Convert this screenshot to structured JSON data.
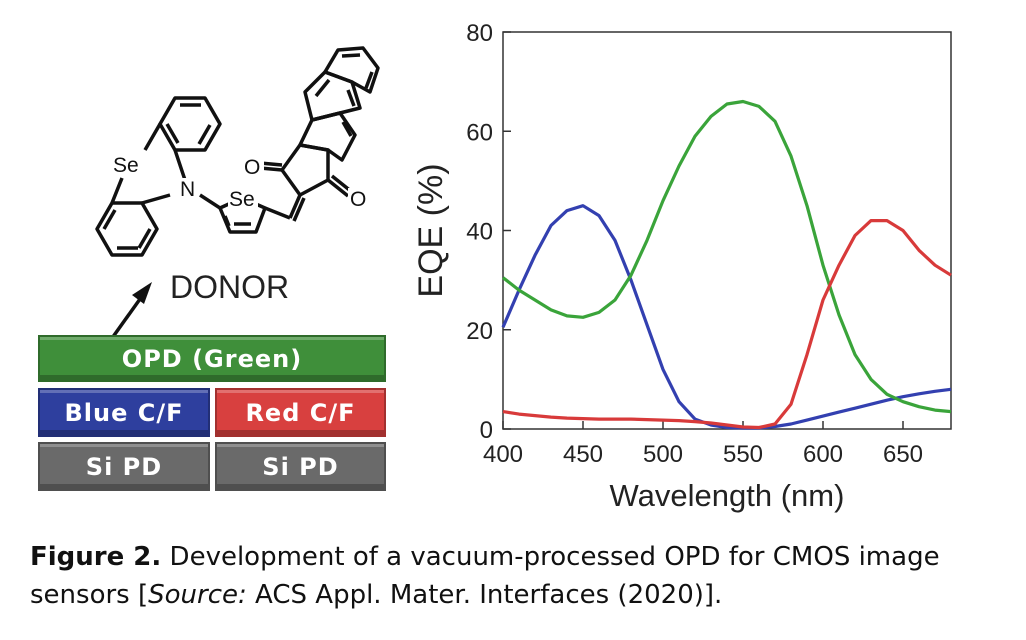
{
  "molecule": {
    "atom_labels": [
      "Se",
      "N",
      "Se",
      "O",
      "O"
    ],
    "name": "DONOR"
  },
  "device_stack": {
    "opd_label": "OPD (Green)",
    "blue_cf_label": "Blue C/F",
    "red_cf_label": "Red C/F",
    "si_pd_left_label": "Si PD",
    "si_pd_right_label": "Si PD",
    "colors": {
      "opd": "#3f8f3a",
      "blue": "#2e3f9e",
      "red": "#d8403f",
      "si": "#6a6a6a"
    }
  },
  "chart_data": {
    "type": "line",
    "xlabel": "Wavelength (nm)",
    "ylabel": "EQE (%)",
    "xlim": [
      400,
      680
    ],
    "ylim": [
      0,
      80
    ],
    "xticks": [
      400,
      450,
      500,
      550,
      600,
      650
    ],
    "yticks": [
      0,
      20,
      40,
      60,
      80
    ],
    "grid": false,
    "series": [
      {
        "color": "#3340b0",
        "x": [
          400,
          410,
          420,
          430,
          440,
          450,
          460,
          470,
          480,
          490,
          500,
          510,
          520,
          530,
          540,
          550,
          560,
          570,
          580,
          590,
          600,
          610,
          620,
          630,
          640,
          650,
          660,
          670,
          680
        ],
        "y": [
          20.5,
          28,
          35,
          41,
          44,
          45,
          43,
          38,
          30,
          21,
          12,
          5.5,
          2,
          0.8,
          0.3,
          0.2,
          0.2,
          0.5,
          1,
          1.8,
          2.6,
          3.4,
          4.2,
          5,
          5.8,
          6.5,
          7.1,
          7.6,
          8
        ]
      },
      {
        "color": "#3aa43a",
        "x": [
          400,
          410,
          420,
          430,
          440,
          450,
          460,
          470,
          480,
          490,
          500,
          510,
          520,
          530,
          540,
          550,
          560,
          570,
          580,
          590,
          600,
          610,
          620,
          630,
          640,
          650,
          660,
          670,
          680
        ],
        "y": [
          30.5,
          28,
          26,
          24,
          22.8,
          22.5,
          23.5,
          26,
          31,
          38,
          46,
          53,
          59,
          63,
          65.5,
          66,
          65,
          62,
          55,
          45,
          33,
          23,
          15,
          10,
          7,
          5.5,
          4.5,
          3.8,
          3.5
        ]
      },
      {
        "color": "#d83a3a",
        "x": [
          400,
          410,
          420,
          430,
          440,
          450,
          460,
          470,
          480,
          490,
          500,
          510,
          520,
          530,
          540,
          550,
          560,
          570,
          580,
          590,
          600,
          610,
          620,
          630,
          640,
          650,
          660,
          670,
          680
        ],
        "y": [
          3.5,
          3,
          2.7,
          2.4,
          2.2,
          2.1,
          2,
          2,
          2,
          1.9,
          1.8,
          1.7,
          1.5,
          1.2,
          0.8,
          0.4,
          0.3,
          1,
          5,
          15,
          26,
          33,
          39,
          42,
          42,
          40,
          36,
          33,
          31
        ]
      }
    ]
  },
  "caption": {
    "bold": "Figure 2.",
    "text1": " Development of a vacuum-processed OPD for CMOS image sensors [",
    "italic": "Source:",
    "text2": " ACS Appl. Mater. Interfaces (2020)]."
  }
}
